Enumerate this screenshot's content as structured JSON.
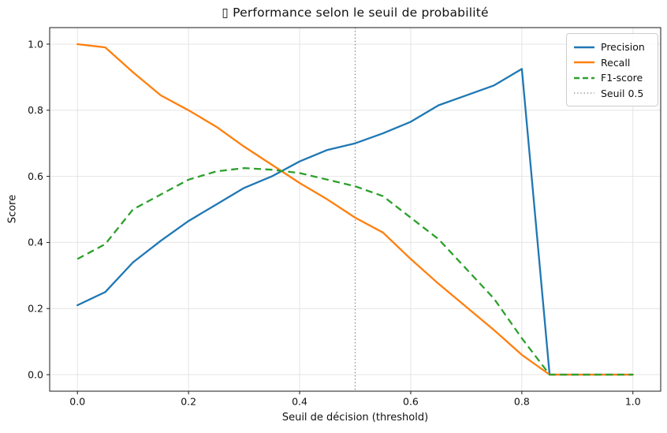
{
  "window": {
    "title_text": "▯ Performance selon le seuil de probabilité"
  },
  "chart_data": {
    "type": "line",
    "title": "▯ Performance selon le seuil de probabilité",
    "xlabel": "Seuil de décision (threshold)",
    "ylabel": "Score",
    "xlim": [
      -0.05,
      1.05
    ],
    "ylim": [
      -0.05,
      1.05
    ],
    "grid": true,
    "legend_position": "upper right",
    "x_ticks": [
      0.0,
      0.2,
      0.4,
      0.6,
      0.8,
      1.0
    ],
    "y_ticks": [
      0.0,
      0.2,
      0.4,
      0.6,
      0.8,
      1.0
    ],
    "x": [
      0.0,
      0.05,
      0.1,
      0.15,
      0.2,
      0.25,
      0.3,
      0.35,
      0.4,
      0.45,
      0.5,
      0.55,
      0.6,
      0.65,
      0.7,
      0.75,
      0.8,
      0.85,
      0.9,
      0.95,
      1.0
    ],
    "series": [
      {
        "name": "Precision",
        "color": "#1f77b4",
        "style": "solid",
        "values": [
          0.21,
          0.25,
          0.34,
          0.405,
          0.465,
          0.515,
          0.565,
          0.6,
          0.645,
          0.68,
          0.7,
          0.73,
          0.765,
          0.815,
          0.845,
          0.875,
          0.925,
          0.0,
          0.0,
          0.0,
          0.0
        ]
      },
      {
        "name": "Recall",
        "color": "#ff7f0e",
        "style": "solid",
        "values": [
          1.0,
          0.99,
          0.915,
          0.845,
          0.8,
          0.75,
          0.69,
          0.635,
          0.58,
          0.53,
          0.475,
          0.43,
          0.35,
          0.275,
          0.205,
          0.135,
          0.06,
          0.0,
          0.0,
          0.0,
          0.0
        ]
      },
      {
        "name": "F1-score",
        "color": "#2ca02c",
        "style": "dashed",
        "values": [
          0.35,
          0.395,
          0.5,
          0.545,
          0.59,
          0.615,
          0.625,
          0.62,
          0.61,
          0.59,
          0.57,
          0.54,
          0.475,
          0.41,
          0.32,
          0.23,
          0.11,
          0.0,
          0.0,
          0.0,
          0.0
        ]
      }
    ],
    "vline": {
      "name": "Seuil 0.5",
      "x": 0.5,
      "color": "#7f7f7f",
      "style": "dotted"
    }
  },
  "legend": {
    "entries": [
      {
        "label": "Precision",
        "color": "#1f77b4",
        "style": "solid"
      },
      {
        "label": "Recall",
        "color": "#ff7f0e",
        "style": "solid"
      },
      {
        "label": "F1-score",
        "color": "#2ca02c",
        "style": "dashed"
      },
      {
        "label": "Seuil 0.5",
        "color": "#7f7f7f",
        "style": "dotted"
      }
    ]
  },
  "colors": {
    "precision": "#1f77b4",
    "recall": "#ff7f0e",
    "f1": "#2ca02c",
    "threshold_line": "#7f7f7f",
    "grid": "#e4e4e4",
    "spine": "#1a1a1a",
    "background": "#ffffff"
  }
}
